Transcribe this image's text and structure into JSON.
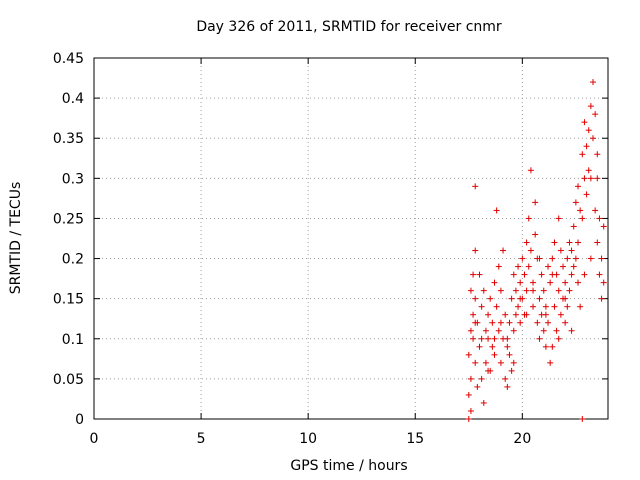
{
  "chart_data": {
    "type": "scatter",
    "title": "Day 326 of 2011, SRMTID for receiver cnmr",
    "xlabel": "GPS time / hours",
    "ylabel": "SRMTID / TECUs",
    "xlim": [
      0,
      24
    ],
    "ylim": [
      0,
      0.45
    ],
    "xticks": [
      0,
      5,
      10,
      15,
      20
    ],
    "xtick_labels": [
      "0",
      "5",
      "10",
      "15",
      "20"
    ],
    "yticks": [
      0,
      0.05,
      0.1,
      0.15,
      0.2,
      0.25,
      0.3,
      0.35,
      0.4,
      0.45
    ],
    "ytick_labels": [
      "0",
      "0.05",
      "0.1",
      "0.15",
      "0.2",
      "0.25",
      "0.3",
      "0.35",
      "0.4",
      "0.45"
    ],
    "grid": true,
    "marker": "plus",
    "color": "#e00000",
    "series": [
      {
        "name": "SRMTID",
        "points": [
          [
            17.5,
            0.0
          ],
          [
            17.6,
            0.01
          ],
          [
            17.5,
            0.03
          ],
          [
            17.6,
            0.05
          ],
          [
            17.5,
            0.08
          ],
          [
            17.6,
            0.11
          ],
          [
            17.7,
            0.13
          ],
          [
            17.6,
            0.16
          ],
          [
            17.7,
            0.18
          ],
          [
            17.8,
            0.29
          ],
          [
            17.8,
            0.21
          ],
          [
            17.8,
            0.15
          ],
          [
            17.7,
            0.1
          ],
          [
            17.8,
            0.07
          ],
          [
            17.9,
            0.04
          ],
          [
            17.9,
            0.12
          ],
          [
            18.0,
            0.18
          ],
          [
            18.0,
            0.09
          ],
          [
            18.1,
            0.05
          ],
          [
            18.1,
            0.14
          ],
          [
            18.2,
            0.16
          ],
          [
            18.2,
            0.02
          ],
          [
            18.3,
            0.11
          ],
          [
            18.3,
            0.07
          ],
          [
            18.4,
            0.13
          ],
          [
            18.4,
            0.1
          ],
          [
            18.5,
            0.15
          ],
          [
            18.5,
            0.06
          ],
          [
            18.6,
            0.12
          ],
          [
            18.6,
            0.09
          ],
          [
            18.7,
            0.17
          ],
          [
            18.7,
            0.08
          ],
          [
            18.8,
            0.26
          ],
          [
            18.8,
            0.14
          ],
          [
            18.9,
            0.19
          ],
          [
            18.9,
            0.11
          ],
          [
            19.0,
            0.16
          ],
          [
            19.0,
            0.07
          ],
          [
            19.1,
            0.1
          ],
          [
            19.1,
            0.21
          ],
          [
            19.2,
            0.05
          ],
          [
            19.2,
            0.13
          ],
          [
            19.3,
            0.04
          ],
          [
            19.3,
            0.09
          ],
          [
            19.4,
            0.12
          ],
          [
            19.4,
            0.08
          ],
          [
            19.5,
            0.06
          ],
          [
            19.5,
            0.15
          ],
          [
            19.6,
            0.11
          ],
          [
            19.6,
            0.18
          ],
          [
            19.7,
            0.13
          ],
          [
            19.7,
            0.16
          ],
          [
            19.8,
            0.19
          ],
          [
            19.8,
            0.14
          ],
          [
            19.9,
            0.12
          ],
          [
            19.9,
            0.17
          ],
          [
            20.0,
            0.2
          ],
          [
            20.0,
            0.15
          ],
          [
            20.1,
            0.18
          ],
          [
            20.1,
            0.13
          ],
          [
            20.2,
            0.22
          ],
          [
            20.2,
            0.16
          ],
          [
            20.3,
            0.25
          ],
          [
            20.3,
            0.19
          ],
          [
            20.4,
            0.31
          ],
          [
            20.4,
            0.21
          ],
          [
            20.5,
            0.17
          ],
          [
            20.5,
            0.14
          ],
          [
            20.6,
            0.27
          ],
          [
            20.6,
            0.23
          ],
          [
            20.7,
            0.2
          ],
          [
            20.7,
            0.12
          ],
          [
            20.8,
            0.15
          ],
          [
            20.8,
            0.1
          ],
          [
            20.9,
            0.18
          ],
          [
            20.9,
            0.13
          ],
          [
            21.0,
            0.11
          ],
          [
            21.0,
            0.16
          ],
          [
            21.1,
            0.14
          ],
          [
            21.1,
            0.09
          ],
          [
            21.2,
            0.19
          ],
          [
            21.2,
            0.12
          ],
          [
            21.3,
            0.17
          ],
          [
            21.3,
            0.07
          ],
          [
            21.4,
            0.09
          ],
          [
            21.4,
            0.2
          ],
          [
            21.5,
            0.22
          ],
          [
            21.5,
            0.14
          ],
          [
            21.6,
            0.18
          ],
          [
            21.6,
            0.11
          ],
          [
            21.7,
            0.25
          ],
          [
            21.7,
            0.16
          ],
          [
            21.8,
            0.21
          ],
          [
            21.8,
            0.13
          ],
          [
            21.9,
            0.19
          ],
          [
            21.9,
            0.15
          ],
          [
            22.0,
            0.17
          ],
          [
            22.0,
            0.12
          ],
          [
            22.1,
            0.2
          ],
          [
            22.1,
            0.14
          ],
          [
            22.2,
            0.22
          ],
          [
            22.2,
            0.16
          ],
          [
            22.3,
            0.18
          ],
          [
            22.3,
            0.11
          ],
          [
            22.4,
            0.24
          ],
          [
            22.4,
            0.19
          ],
          [
            22.5,
            0.27
          ],
          [
            22.5,
            0.2
          ],
          [
            22.6,
            0.29
          ],
          [
            22.6,
            0.22
          ],
          [
            22.7,
            0.26
          ],
          [
            22.7,
            0.14
          ],
          [
            22.8,
            0.33
          ],
          [
            22.8,
            0.25
          ],
          [
            22.9,
            0.37
          ],
          [
            22.9,
            0.3
          ],
          [
            23.0,
            0.34
          ],
          [
            23.0,
            0.28
          ],
          [
            23.1,
            0.36
          ],
          [
            23.1,
            0.31
          ],
          [
            23.2,
            0.39
          ],
          [
            23.2,
            0.3
          ],
          [
            23.3,
            0.42
          ],
          [
            23.3,
            0.35
          ],
          [
            23.4,
            0.38
          ],
          [
            23.4,
            0.26
          ],
          [
            23.5,
            0.33
          ],
          [
            23.5,
            0.22
          ],
          [
            23.6,
            0.25
          ],
          [
            23.6,
            0.18
          ],
          [
            23.7,
            0.2
          ],
          [
            23.7,
            0.15
          ],
          [
            23.8,
            0.17
          ],
          [
            23.8,
            0.24
          ],
          [
            23.5,
            0.3
          ],
          [
            23.2,
            0.2
          ],
          [
            22.9,
            0.18
          ],
          [
            22.6,
            0.17
          ],
          [
            22.3,
            0.21
          ],
          [
            22.0,
            0.15
          ],
          [
            21.7,
            0.1
          ],
          [
            21.4,
            0.18
          ],
          [
            21.1,
            0.13
          ],
          [
            20.8,
            0.2
          ],
          [
            20.5,
            0.16
          ],
          [
            20.2,
            0.13
          ],
          [
            19.9,
            0.15
          ],
          [
            19.6,
            0.07
          ],
          [
            19.3,
            0.1
          ],
          [
            19.0,
            0.12
          ],
          [
            18.7,
            0.1
          ],
          [
            18.4,
            0.06
          ],
          [
            18.1,
            0.1
          ],
          [
            17.8,
            0.12
          ],
          [
            22.8,
            0.0
          ]
        ]
      }
    ]
  }
}
